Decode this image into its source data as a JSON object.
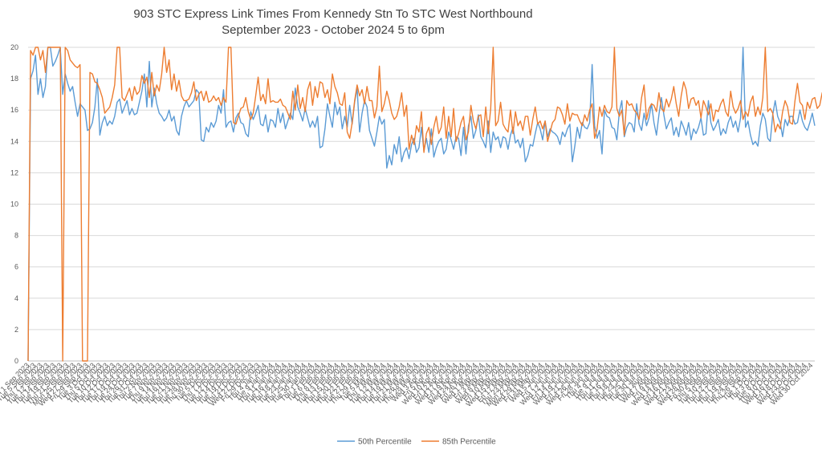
{
  "chart_data": {
    "type": "line",
    "title_line1": "903 STC Express Link Times From Kennedy Stn To STC West Northbound",
    "title_line2": "September 2023 - October 2024 5 to 6pm",
    "xlabel": "",
    "ylabel": "",
    "ylim": [
      0,
      20
    ],
    "yticks": [
      0,
      2,
      4,
      6,
      8,
      10,
      12,
      14,
      16,
      18,
      20
    ],
    "grid": true,
    "legend_position": "bottom",
    "x_start": "2023-09-01",
    "x_end": "2024-10-31",
    "x_tick_labels": [
      "Fri 1 Sep 2023",
      "Tue 5 Sep 2023",
      "Thu 7 Sep 2023",
      "Tue 12 Sep 2023",
      "Thu 14 Sep 2023",
      "Tue 19 Sep 2023",
      "Thu 21 Sep 2023",
      "Mon 25 Sep 2023",
      "Wed 27 Sep 2023",
      "Fri 29 Sep 2023",
      "Tue 3 Oct 2023",
      "Thu 5 Oct 2023",
      "Tue 10 Oct 2023",
      "Thu 12 Oct 2023",
      "Tue 17 Oct 2023",
      "Thu 19 Oct 2023",
      "Tue 24 Oct 2023",
      "Thu 26 Oct 2023",
      "Tue 31 Oct 2023",
      "Thu 2 Nov 2023",
      "Tue 7 Nov 2023",
      "Thu 9 Nov 2023",
      "Tue 14 Nov 2023",
      "Thu 16 Nov 2023",
      "Tue 21 Nov 2023",
      "Thu 23 Nov 2023",
      "Tue 28 Nov 2023",
      "Thu 30 Nov 2023",
      "Tue 5 Dec 2023",
      "Thu 7 Dec 2023",
      "Tue 12 Dec 2023",
      "Thu 14 Dec 2023",
      "Tue 19 Dec 2023",
      "Thu 21 Dec 2023",
      "Wed 27 Dec 2023",
      "Fri 29 Dec 2023",
      "Thu 4 Jan 2024",
      "Tue 9 Jan 2024",
      "Thu 11 Jan 2024",
      "Tue 16 Jan 2024",
      "Thu 18 Jan 2024",
      "Tue 23 Jan 2024",
      "Thu 25 Jan 2024",
      "Tue 30 Jan 2024",
      "Thu 1 Feb 2024",
      "Tue 6 Feb 2024",
      "Thu 8 Feb 2024",
      "Tue 13 Feb 2024",
      "Thu 15 Feb 2024",
      "Tue 20 Feb 2024",
      "Thu 22 Feb 2024",
      "Tue 27 Feb 2024",
      "Thu 29 Feb 2024",
      "Tue 5 Mar 2024",
      "Thu 7 Mar 2024",
      "Tue 12 Mar 2024",
      "Thu 14 Mar 2024",
      "Tue 19 Mar 2024",
      "Thu 21 Mar 2024",
      "Tue 26 Mar 2024",
      "Thu 28 Mar 2024",
      "Wed 3 Apr 2024",
      "Fri 5 Apr 2024",
      "Wed 10 Apr 2024",
      "Fri 12 Apr 2024",
      "Wed 17 Apr 2024",
      "Fri 19 Apr 2024",
      "Wed 24 Apr 2024",
      "Fri 26 Apr 2024",
      "Wed 1 May 2024",
      "Fri 3 May 2024",
      "Wed 8 May 2024",
      "Fri 10 May 2024",
      "Wed 15 May 2024",
      "Fri 17 May 2024",
      "Thu 23 May 2024",
      "Mon 27 May 2024",
      "Wed 29 May 2024",
      "Fri 31 May 2024",
      "Wed 5 Jun 2024",
      "Fri 7 Jun 2024",
      "Wed 12 Jun 2024",
      "Fri 14 Jun 2024",
      "Wed 19 Jun 2024",
      "Fri 21 Jun 2024",
      "Wed 26 Jun 2024",
      "Fri 28 Jun 2024",
      "Thu 4 Jul 2024",
      "Tue 9 Jul 2024",
      "Thu 11 Jul 2024",
      "Tue 16 Jul 2024",
      "Thu 18 Jul 2024",
      "Tue 23 Jul 2024",
      "Thu 25 Jul 2024",
      "Tue 30 Jul 2024",
      "Thu 1 Aug 2024",
      "Wed 7 Aug 2024",
      "Fri 9 Aug 2024",
      "Wed 14 Aug 2024",
      "Fri 16 Aug 2024",
      "Wed 21 Aug 2024",
      "Fri 23 Aug 2024",
      "Wed 28 Aug 2024",
      "Fri 30 Aug 2024",
      "Thu 5 Sep 2024",
      "Tue 10 Sep 2024",
      "Thu 12 Sep 2024",
      "Tue 17 Sep 2024",
      "Thu 19 Sep 2024",
      "Tue 24 Sep 2024",
      "Thu 26 Sep 2024",
      "Tue 1 Oct 2024",
      "Thu 3 Oct 2024",
      "Tue 8 Oct 2024",
      "Thu 10 Oct 2024",
      "Wed 16 Oct 2024",
      "Fri 18 Oct 2024",
      "Wed 23 Oct 2024",
      "Fri 25 Oct 2024",
      "Wed 30 Oct 2024"
    ],
    "series": [
      {
        "name": "50th Percentile",
        "color": "#5B9BD5",
        "values": [
          0,
          18,
          18.5,
          19.5,
          17,
          18,
          16.8,
          17.5,
          20,
          20,
          18.8,
          19.1,
          19.5,
          20,
          17,
          18.3,
          17.7,
          17.2,
          17.5,
          16.5,
          15.6,
          16.4,
          16.2,
          16,
          14.7,
          14.8,
          15.2,
          16.2,
          18,
          14.4,
          15.2,
          15.6,
          15,
          15.3,
          15.1,
          15.6,
          16.5,
          16.7,
          15.8,
          16.2,
          16.6,
          15.7,
          16.1,
          15.7,
          15.8,
          16.5,
          17.2,
          18.3,
          16.2,
          19.1,
          16.2,
          17.4,
          16.4,
          15.8,
          15.6,
          15.3,
          15.5,
          16,
          15.3,
          15.6,
          14.7,
          14.4,
          15.6,
          16.2,
          16.6,
          16.2,
          16.4,
          16.6,
          17.3,
          17.1,
          14.1,
          14,
          14.9,
          14.6,
          15.2,
          14.9,
          15.3,
          16.3,
          15.8,
          17.3,
          14.9,
          15.2,
          15.3,
          14.6,
          15.5,
          15.8,
          15.2,
          15.1,
          14.5,
          14.3,
          15.9,
          15.4,
          15.8,
          16.3,
          15.1,
          15,
          15.7,
          14.6,
          15.4,
          15.3,
          14.9,
          16.1,
          15.2,
          15.8,
          14.8,
          15.3,
          15.8,
          15.4,
          17.4,
          16.2,
          15.8,
          15.3,
          16.1,
          15.5,
          14.9,
          15.3,
          14.9,
          15.6,
          13.6,
          13.7,
          14.8,
          16.4,
          15.6,
          14.9,
          16.5,
          15.7,
          16.2,
          14.8,
          15.6,
          14.9,
          16.3,
          15.1,
          16.5,
          17.4,
          14.6,
          15.8,
          16.6,
          16.2,
          14.7,
          14.2,
          13.7,
          14.6,
          15.6,
          15.1,
          15.4,
          12.3,
          13.1,
          12.5,
          13.8,
          13.2,
          14.3,
          12.7,
          13.3,
          13.6,
          12.9,
          13.8,
          14.2,
          13.3,
          13.6,
          14.9,
          13.4,
          14.2,
          13.3,
          14.8,
          13,
          13.6,
          14,
          14.2,
          13.2,
          13.5,
          14.6,
          14.1,
          13.5,
          14.3,
          14.2,
          13.1,
          14.9,
          13.2,
          15,
          15.6,
          14.2,
          14.7,
          15.7,
          14.3,
          14,
          13.6,
          15.3,
          13.3,
          14.6,
          14.1,
          14.3,
          13.6,
          14.3,
          14.2,
          13.5,
          14.4,
          14.9,
          13.9,
          14.1,
          13.6,
          14.2,
          12.7,
          13.1,
          13.8,
          13.7,
          14.5,
          15.2,
          14.8,
          14.1,
          15.3,
          14.3,
          14.8,
          14.6,
          14.5,
          14.3,
          13.8,
          14.6,
          14.3,
          14.8,
          15.1,
          12.7,
          13.7,
          14.9,
          14.2,
          15.2,
          14.9,
          14.8,
          15.2,
          18.9,
          15,
          14.2,
          14.7,
          13.2,
          16,
          15.6,
          15.5,
          14.9,
          14.8,
          14.1,
          15.9,
          16.6,
          14.3,
          14.9,
          15.2,
          15.1,
          14.6,
          16.4,
          15.1,
          14.7,
          15.8,
          15,
          15.5,
          16.4,
          15.2,
          14.4,
          15.7,
          16.8,
          15.7,
          14.8,
          15.2,
          15.5,
          14.4,
          14.9,
          14.3,
          15.3,
          14.9,
          14.4,
          15.2,
          14.1,
          14.8,
          14.5,
          14.9,
          15.5,
          14.4,
          14.5,
          16.6,
          15.2,
          14.7,
          15,
          15.4,
          14.4,
          14.8,
          14.5,
          15.2,
          15.6,
          14.9,
          15.3,
          14.6,
          15.5,
          20,
          14.9,
          15.3,
          14.4,
          13.8,
          14,
          13.7,
          15,
          15.8,
          15.4,
          14.2,
          14,
          15.7,
          16.6,
          15.6,
          15.2,
          14.3,
          15.4,
          15,
          15.6,
          15.6,
          15.1,
          15.2,
          16,
          15.3,
          14.9,
          14.7,
          15.2,
          15.8,
          15
        ]
      },
      {
        "name": "85th Percentile",
        "color": "#ED7D31",
        "values": [
          0,
          19.8,
          19.5,
          20,
          20,
          19.2,
          19.8,
          18.4,
          20,
          20,
          20,
          20,
          20,
          20,
          0,
          20,
          19.8,
          19.2,
          19,
          18.8,
          18.7,
          18.9,
          0,
          0,
          0,
          18.4,
          18.3,
          17.8,
          17.7,
          17.3,
          16.8,
          15.8,
          16,
          16.2,
          16.8,
          17.6,
          20,
          20,
          16.8,
          16.6,
          17,
          17.4,
          16.6,
          17.5,
          17,
          17.2,
          18.2,
          17.7,
          18.1,
          16.8,
          18.4,
          16.9,
          17.6,
          17.2,
          18.3,
          20,
          18.4,
          19.2,
          17.3,
          18.3,
          17.2,
          17.9,
          16.9,
          16.6,
          16.6,
          16.7,
          17.1,
          17.8,
          16.6,
          17,
          17.2,
          16.6,
          17.2,
          16.5,
          16.6,
          16.9,
          16.6,
          16.8,
          16.3,
          16.8,
          16.5,
          20,
          20,
          15.2,
          15.1,
          15.6,
          16.1,
          16.2,
          16.8,
          15.9,
          15.4,
          15.8,
          16.9,
          18.1,
          16.6,
          17,
          16.4,
          18,
          16.5,
          16.6,
          16.5,
          16.5,
          16.7,
          16.3,
          16.2,
          15.8,
          15.4,
          17.2,
          16,
          17.6,
          16.1,
          16.8,
          15.9,
          17.3,
          17.8,
          16.3,
          17.5,
          16.8,
          17.8,
          17.7,
          16.8,
          17.3,
          16.4,
          18.3,
          17.5,
          17.1,
          16.4,
          16.3,
          17.1,
          14.6,
          14.2,
          15.2,
          16.6,
          17.6,
          16.9,
          17.3,
          16.4,
          17.5,
          16.6,
          16.6,
          15.5,
          16.2,
          18.8,
          15.9,
          16.4,
          17.2,
          16.6,
          15.8,
          15.4,
          15.6,
          16.2,
          17.1,
          15.6,
          16.3,
          13.5,
          14.4,
          13.8,
          15,
          14.6,
          15.9,
          13.3,
          14.5,
          14.9,
          13.8,
          14.9,
          15.6,
          14.5,
          14.9,
          16.2,
          14.2,
          15.6,
          14.3,
          16.1,
          14,
          14.5,
          15.2,
          15.6,
          14.1,
          14.6,
          16.3,
          15.3,
          14.8,
          15.6,
          15.7,
          14.3,
          16.2,
          14.5,
          16.1,
          20,
          15,
          15.3,
          16.5,
          15.1,
          14.8,
          14.6,
          16,
          14.5,
          15.9,
          15,
          15.3,
          14.7,
          15.6,
          15.6,
          14.4,
          15.4,
          16.2,
          15.1,
          15.3,
          14.8,
          15.3,
          14,
          14.6,
          15.2,
          15.4,
          16.2,
          16.1,
          15.7,
          15.1,
          16.4,
          15.3,
          15.8,
          15.7,
          15.7,
          15.3,
          15,
          15.7,
          15.3,
          16,
          16.4,
          14.2,
          14.8,
          16.2,
          15.6,
          16.3,
          15.9,
          15.8,
          16.2,
          20,
          16.1,
          15.6,
          16,
          14.4,
          16.6,
          16.3,
          16.4,
          16,
          15.8,
          15.4,
          16.8,
          17.6,
          15.4,
          16.1,
          16.4,
          16.3,
          15.9,
          17.1,
          16.1,
          15.9,
          16.7,
          16.2,
          16.7,
          17.5,
          16.4,
          15.6,
          16.9,
          17.8,
          17.3,
          16.1,
          16.7,
          16.8,
          16.3,
          16.6,
          15.5,
          16.6,
          16.2,
          15.7,
          16.4,
          15.3,
          16,
          15.9,
          16.4,
          16.7,
          15.9,
          15.6,
          17.2,
          16.2,
          15.8,
          16.1,
          16.6,
          15.4,
          15.9,
          15.6,
          16.5,
          16.9,
          15.6,
          16.2,
          15.7,
          16.8,
          20,
          15.9,
          16.1,
          15.8,
          14.6,
          15.1,
          14.8,
          15.9,
          16.6,
          16.2,
          15.2,
          15.1,
          16.6,
          17.7,
          16.5,
          16.3,
          15.4,
          16.5,
          16.1,
          16.7,
          16.8,
          16.1,
          16.3,
          17.1,
          16.5,
          16,
          15.8,
          16.3,
          20,
          16.2,
          16
        ]
      }
    ]
  }
}
